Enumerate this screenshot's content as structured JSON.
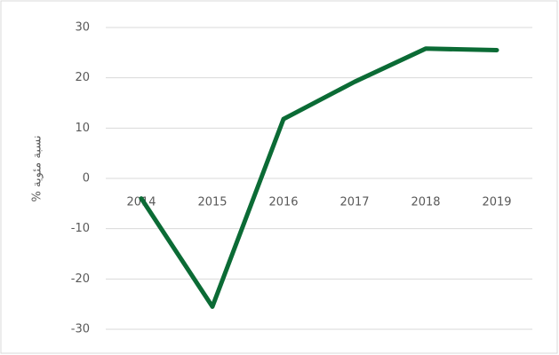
{
  "chart_data": {
    "type": "line",
    "y_label": "% نسبة مئوية",
    "categories": [
      "2014",
      "2015",
      "2016",
      "2017",
      "2018",
      "2019"
    ],
    "series": [
      {
        "name": "نسبة مئوية",
        "color": "#0b6b35",
        "values": [
          -4,
          -25.5,
          11.8,
          19.2,
          25.8,
          25.5
        ]
      }
    ],
    "ylim": [
      -30,
      30
    ],
    "yticks": [
      -30,
      -20,
      -10,
      0,
      10,
      20,
      30
    ],
    "grid": true
  }
}
